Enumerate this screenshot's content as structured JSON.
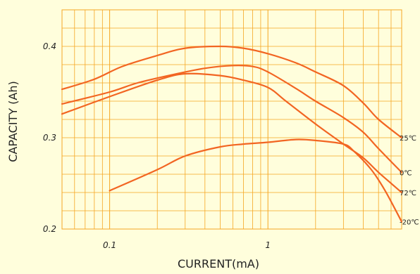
{
  "chart_data": {
    "type": "line",
    "xlabel": "CURRENT(mA)",
    "ylabel": "CAPACITY (Ah)",
    "x_scale": "log",
    "xlim": [
      0.05,
      7
    ],
    "ylim": [
      0.2,
      0.44
    ],
    "x_ticks": [
      {
        "value": 0.1,
        "label": "0.1"
      },
      {
        "value": 1,
        "label": "1"
      }
    ],
    "y_ticks": [
      {
        "value": 0.2,
        "label": "0.2"
      },
      {
        "value": 0.3,
        "label": "0.3"
      },
      {
        "value": 0.4,
        "label": "0.4"
      }
    ],
    "grid": true,
    "colors": {
      "background": "#FFFEDC",
      "grid": "#F5A623",
      "line": "#F26522",
      "text": "#222222"
    },
    "series": [
      {
        "name": "25℃",
        "points": [
          [
            0.05,
            0.353
          ],
          [
            0.08,
            0.364
          ],
          [
            0.12,
            0.378
          ],
          [
            0.2,
            0.39
          ],
          [
            0.3,
            0.398
          ],
          [
            0.5,
            0.4
          ],
          [
            0.7,
            0.398
          ],
          [
            1,
            0.392
          ],
          [
            1.5,
            0.382
          ],
          [
            2,
            0.372
          ],
          [
            3,
            0.357
          ],
          [
            4,
            0.338
          ],
          [
            5,
            0.32
          ],
          [
            7,
            0.3
          ]
        ]
      },
      {
        "name": "0℃",
        "points": [
          [
            0.05,
            0.337
          ],
          [
            0.1,
            0.35
          ],
          [
            0.15,
            0.36
          ],
          [
            0.25,
            0.369
          ],
          [
            0.4,
            0.376
          ],
          [
            0.6,
            0.379
          ],
          [
            0.8,
            0.378
          ],
          [
            1,
            0.372
          ],
          [
            1.5,
            0.354
          ],
          [
            2,
            0.34
          ],
          [
            3,
            0.322
          ],
          [
            4,
            0.306
          ],
          [
            5,
            0.288
          ],
          [
            7,
            0.262
          ]
        ]
      },
      {
        "name": "72℃",
        "points": [
          [
            0.05,
            0.326
          ],
          [
            0.1,
            0.345
          ],
          [
            0.2,
            0.363
          ],
          [
            0.3,
            0.37
          ],
          [
            0.5,
            0.368
          ],
          [
            0.7,
            0.363
          ],
          [
            1,
            0.355
          ],
          [
            1.3,
            0.34
          ],
          [
            2,
            0.315
          ],
          [
            3,
            0.293
          ],
          [
            4,
            0.278
          ],
          [
            5,
            0.262
          ],
          [
            7,
            0.24
          ]
        ]
      },
      {
        "name": "-20℃",
        "points": [
          [
            0.1,
            0.242
          ],
          [
            0.2,
            0.265
          ],
          [
            0.3,
            0.28
          ],
          [
            0.5,
            0.29
          ],
          [
            0.7,
            0.293
          ],
          [
            1,
            0.295
          ],
          [
            1.5,
            0.298
          ],
          [
            2,
            0.297
          ],
          [
            3,
            0.293
          ],
          [
            3.5,
            0.285
          ],
          [
            4.5,
            0.265
          ],
          [
            5.5,
            0.242
          ],
          [
            7,
            0.208
          ]
        ]
      }
    ]
  }
}
